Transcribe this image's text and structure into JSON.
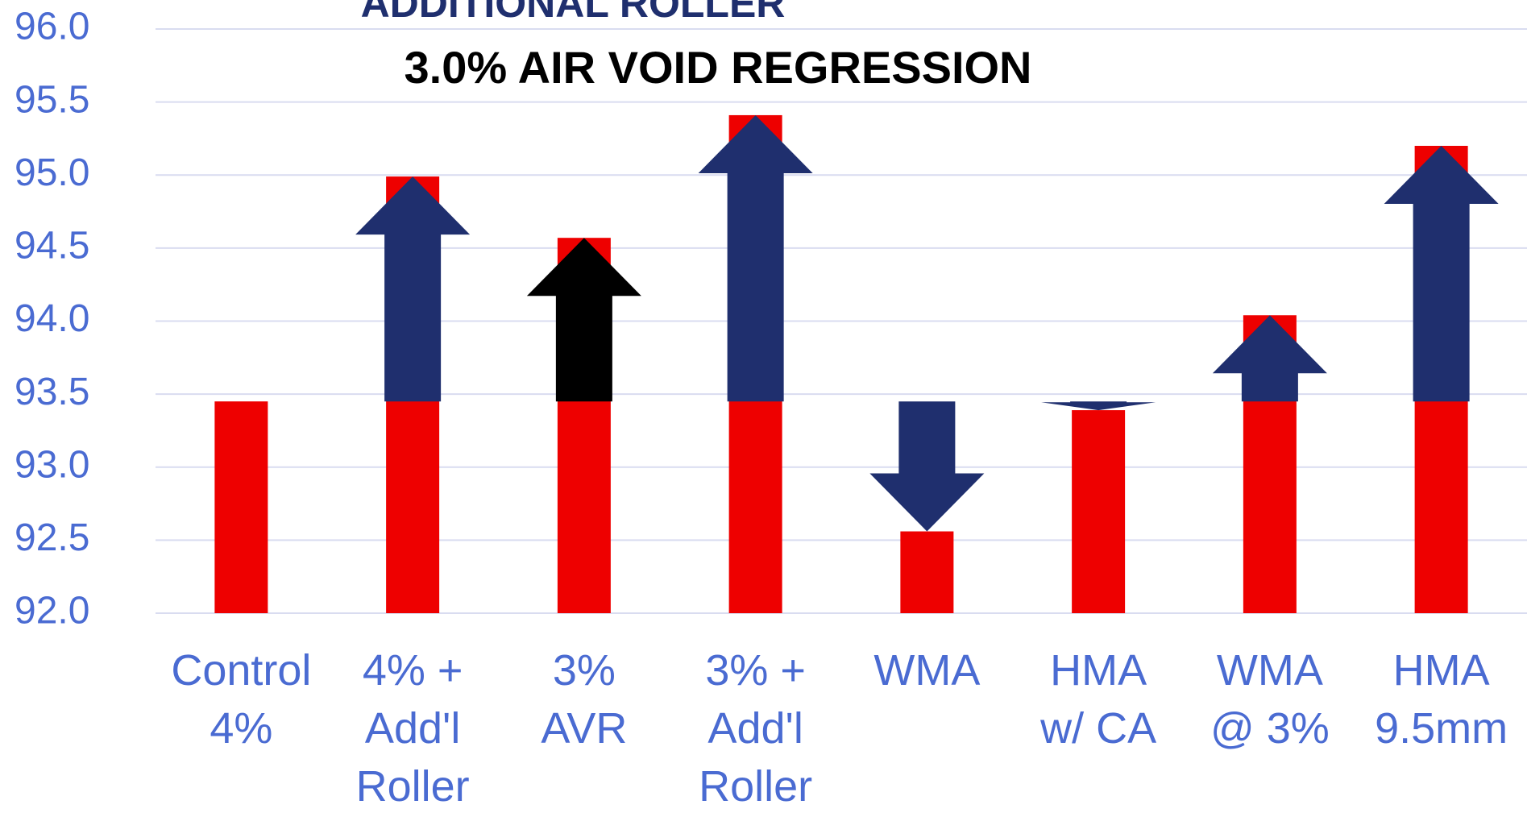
{
  "chart_data": {
    "type": "bar",
    "title": "ADDITIONAL ROLLER",
    "subtitle": "3.0% AIR VOID REGRESSION",
    "categories": [
      "Control\n4%",
      "4% +\nAdd'l\nRoller",
      "3%\nAVR",
      "3% +\nAdd'l\nRoller",
      "WMA",
      "HMA\nw/ CA",
      "WMA\n@ 3%",
      "HMA\n9.5mm"
    ],
    "values": [
      93.45,
      94.99,
      94.57,
      95.41,
      92.56,
      93.39,
      94.04,
      95.2
    ],
    "color": "#ee0000",
    "arrow_colors": [
      null,
      "#1f2f6e",
      "#000000",
      "#1f2f6e",
      "#1f2f6e",
      "#1f2f6e",
      "#1f2f6e",
      "#1f2f6e"
    ],
    "ylim": [
      92,
      96
    ],
    "yticks": [
      {
        "value": 92,
        "label": "92.0"
      },
      92.5,
      {
        "value": 93,
        "label": "93.0"
      },
      93.5,
      {
        "value": 94,
        "label": "94.0"
      },
      94.5,
      {
        "value": 95,
        "label": "95.0"
      },
      95.5,
      {
        "value": 96,
        "label": "96.0"
      }
    ],
    "grid": true
  }
}
